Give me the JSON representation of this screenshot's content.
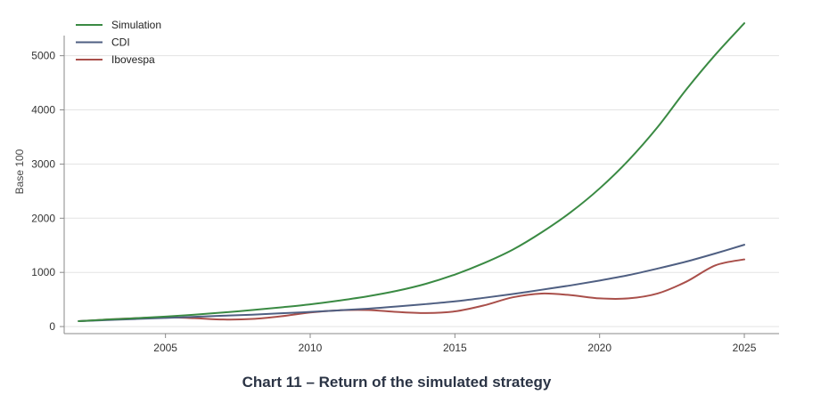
{
  "caption": "Chart 11 – Return of the simulated strategy",
  "colors": {
    "simulation": "#3a8a43",
    "cdi": "#4f5f82",
    "ibovespa": "#a94f4a",
    "grid": "#e3e3e3",
    "axis": "#8a8a8a",
    "text": "#333333"
  },
  "chart_data": {
    "type": "line",
    "title": "",
    "xlabel": "",
    "ylabel": "Base 100",
    "xlim": [
      2001.5,
      2026.2
    ],
    "ylim": [
      -130,
      5700
    ],
    "x_ticks": [
      2005,
      2010,
      2015,
      2020,
      2025
    ],
    "y_ticks": [
      0,
      1000,
      2000,
      3000,
      4000,
      5000
    ],
    "grid": "horizontal",
    "legend": "top-left",
    "series": [
      {
        "name": "Simulation",
        "color": "#3a8a43",
        "x": [
          2002,
          2003,
          2004,
          2005,
          2006,
          2007,
          2008,
          2009,
          2010,
          2011,
          2012,
          2013,
          2014,
          2015,
          2016,
          2017,
          2018,
          2019,
          2020,
          2021,
          2022,
          2023,
          2024,
          2025
        ],
        "y": [
          100,
          130,
          155,
          185,
          220,
          260,
          305,
          355,
          410,
          480,
          560,
          660,
          790,
          960,
          1170,
          1420,
          1740,
          2110,
          2550,
          3070,
          3680,
          4380,
          5020,
          5600
        ]
      },
      {
        "name": "CDI",
        "color": "#4f5f82",
        "x": [
          2002,
          2003,
          2004,
          2005,
          2006,
          2007,
          2008,
          2009,
          2010,
          2011,
          2012,
          2013,
          2014,
          2015,
          2016,
          2017,
          2018,
          2019,
          2020,
          2021,
          2022,
          2023,
          2024,
          2025
        ],
        "y": [
          100,
          120,
          140,
          160,
          180,
          200,
          220,
          245,
          270,
          300,
          330,
          370,
          415,
          465,
          530,
          600,
          680,
          760,
          850,
          950,
          1070,
          1200,
          1350,
          1510
        ]
      },
      {
        "name": "Ibovespa",
        "color": "#a94f4a",
        "x": [
          2002,
          2003,
          2004,
          2005,
          2006,
          2007,
          2008,
          2009,
          2010,
          2011,
          2012,
          2013,
          2014,
          2015,
          2016,
          2017,
          2018,
          2019,
          2020,
          2021,
          2022,
          2023,
          2024,
          2025
        ],
        "y": [
          100,
          130,
          155,
          170,
          155,
          130,
          140,
          190,
          260,
          300,
          305,
          270,
          250,
          280,
          390,
          540,
          610,
          580,
          520,
          520,
          610,
          830,
          1130,
          1240
        ]
      }
    ]
  }
}
